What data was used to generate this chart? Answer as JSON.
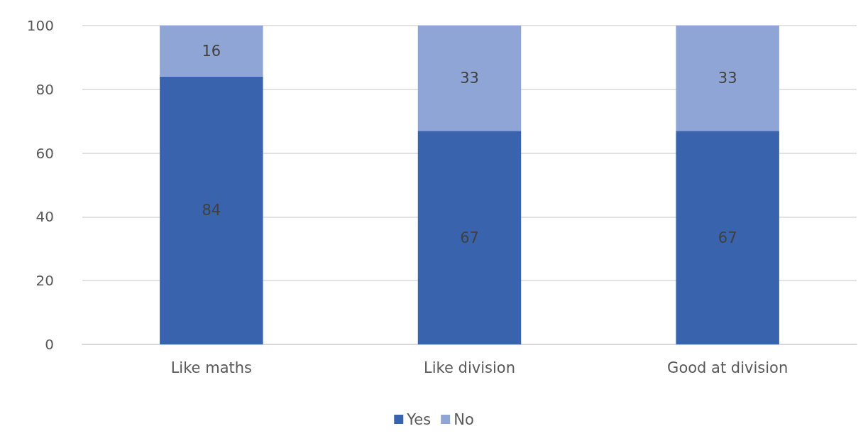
{
  "chart_data": {
    "type": "bar",
    "categories": [
      "Like maths",
      "Like division",
      "Good at division"
    ],
    "series": [
      {
        "name": "Yes",
        "color": "#3a63ad",
        "values": [
          84,
          67,
          67
        ]
      },
      {
        "name": "No",
        "color": "#8fa5d5",
        "values": [
          16,
          33,
          33
        ]
      }
    ],
    "stacked": true,
    "ylim": [
      0,
      100
    ],
    "yticks": [
      0,
      20,
      40,
      60,
      80,
      100
    ],
    "grid": "y",
    "legend": "bottom",
    "data_labels": true
  }
}
